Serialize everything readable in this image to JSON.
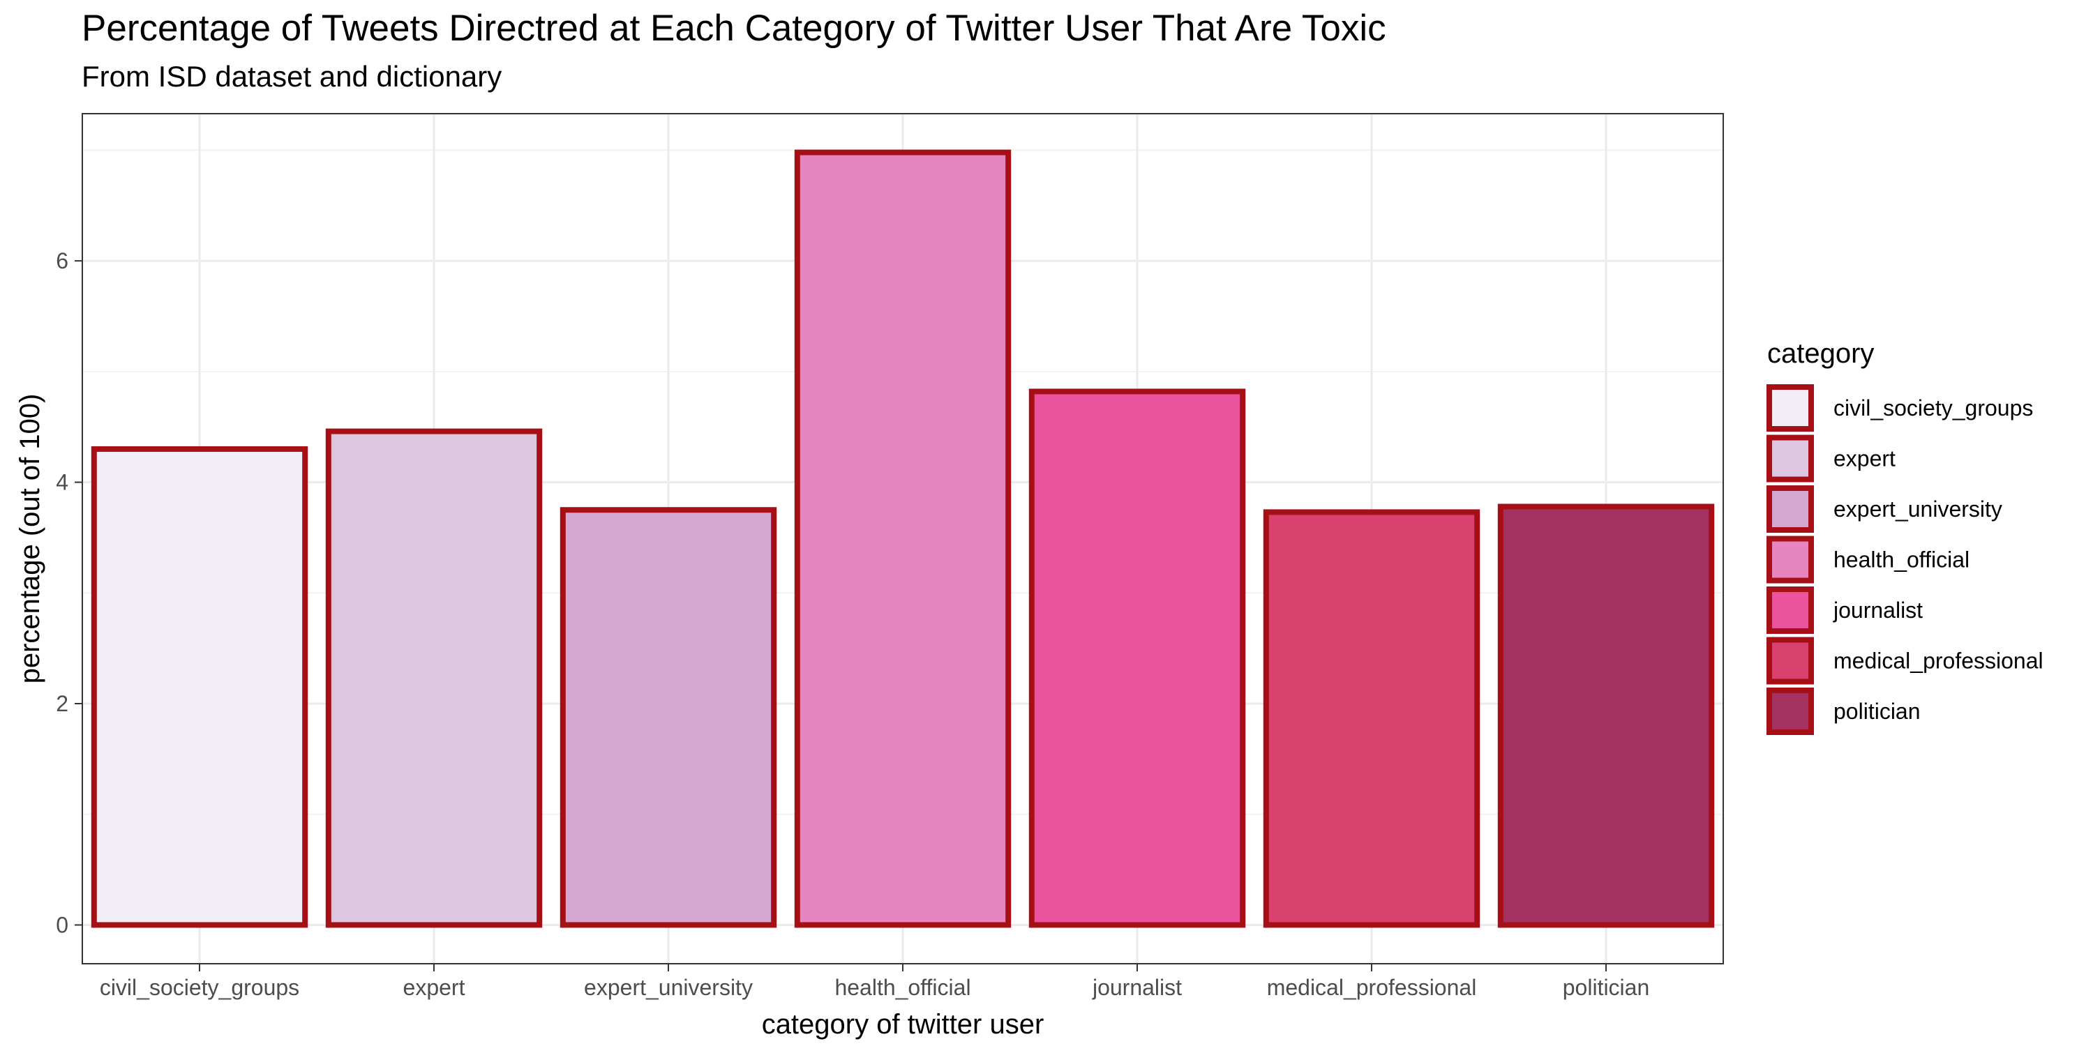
{
  "chart_data": {
    "type": "bar",
    "title": "Percentage of Tweets Directred at Each Category of Twitter User That Are Toxic",
    "subtitle": "From ISD dataset and dictionary",
    "xlabel": "category of twitter user",
    "ylabel": "percentage (out of 100)",
    "categories": [
      "civil_society_groups",
      "expert",
      "expert_university",
      "health_official",
      "journalist",
      "medical_professional",
      "politician"
    ],
    "values": [
      4.3,
      4.46,
      3.75,
      6.98,
      4.82,
      3.73,
      3.78
    ],
    "ylim": [
      -0.35,
      7.33
    ],
    "yticks": [
      0,
      2,
      4,
      6
    ],
    "fill_colors": [
      "#f1eef6",
      "#dec6e0",
      "#d4a8d3",
      "#e685c0",
      "#ec539f",
      "#d9416f",
      "#a33260"
    ],
    "bar_outline_color": "#a50f15",
    "grid": true,
    "legend": {
      "title": "category",
      "position": "right",
      "entries": [
        "civil_society_groups",
        "expert",
        "expert_university",
        "health_official",
        "journalist",
        "medical_professional",
        "politician"
      ]
    }
  }
}
